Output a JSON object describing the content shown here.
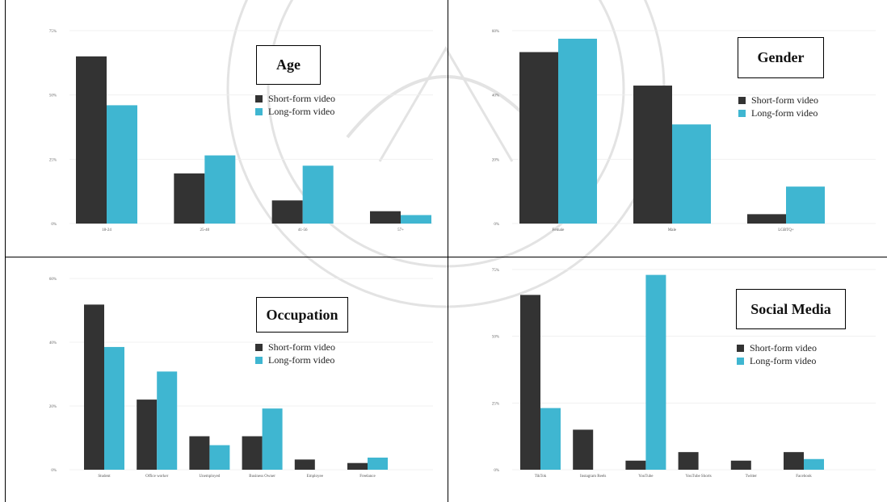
{
  "colors": {
    "short": "#333333",
    "long": "#3FB6D1",
    "border": "#000000"
  },
  "legend": {
    "short_label": "Short-form video",
    "long_label": "Long-form video"
  },
  "chart_data": [
    {
      "type": "bar",
      "title": "Age",
      "categories": [
        "18-24",
        "25-40",
        "41-56",
        "57+"
      ],
      "series": [
        {
          "name": "Short-form video",
          "values": [
            65,
            19.5,
            9,
            4.8
          ]
        },
        {
          "name": "Long-form video",
          "values": [
            46,
            26.5,
            22.5,
            3.3
          ]
        }
      ],
      "yticks": [
        "0%",
        "25%",
        "50%",
        "75%"
      ],
      "ylim": [
        0,
        75
      ],
      "grid": true,
      "legend_position": "right"
    },
    {
      "type": "bar",
      "title": "Gender",
      "categories": [
        "Female",
        "Male",
        "LGBTQ+"
      ],
      "series": [
        {
          "name": "Short-form video",
          "values": [
            64,
            51.5,
            3.5
          ]
        },
        {
          "name": "Long-form video",
          "values": [
            69,
            37,
            13.8
          ]
        }
      ],
      "yticks": [
        "0%",
        "20%",
        "40%",
        "60%"
      ],
      "ylim": [
        0,
        72
      ],
      "grid": true,
      "legend_position": "right"
    },
    {
      "type": "bar",
      "title": "Occupation",
      "categories": [
        "Student",
        "Office worker",
        "Unemployed",
        "Business Owner",
        "Employee",
        "Freelance"
      ],
      "series": [
        {
          "name": "Short-form video",
          "values": [
            51.8,
            22,
            10.5,
            10.5,
            3.2,
            2.1
          ]
        },
        {
          "name": "Long-form video",
          "values": [
            38.5,
            30.8,
            7.7,
            19.2,
            0,
            3.8
          ]
        }
      ],
      "yticks": [
        "0%",
        "20%",
        "40%",
        "60%"
      ],
      "ylim": [
        0,
        60
      ],
      "grid": true,
      "legend_position": "right"
    },
    {
      "type": "bar",
      "title": "Social Media",
      "categories": [
        "TikTok",
        "Instagram Reels",
        "YouTube",
        "YouTube Shorts",
        "Twitter",
        "Facebook"
      ],
      "series": [
        {
          "name": "Short-form video",
          "values": [
            65.5,
            15,
            3.4,
            6.6,
            3.4,
            6.6
          ]
        },
        {
          "name": "Long-form video",
          "values": [
            23.1,
            0,
            73,
            0,
            0,
            4
          ]
        }
      ],
      "yticks": [
        "0%",
        "25%",
        "50%",
        "75%"
      ],
      "ylim": [
        0,
        75
      ],
      "grid": true,
      "legend_position": "right"
    }
  ]
}
